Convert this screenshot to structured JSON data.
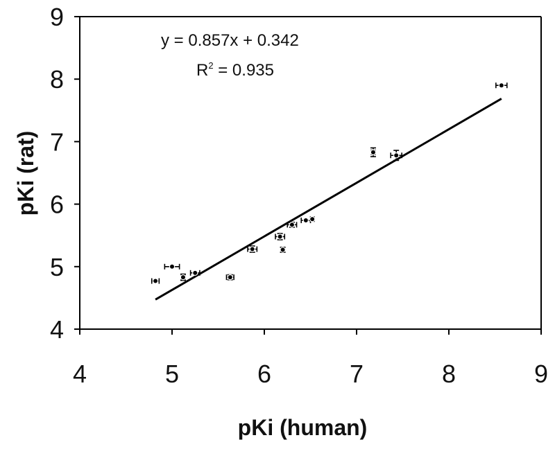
{
  "chart_data": {
    "type": "scatter",
    "xlabel": "pKi (human)",
    "ylabel": "pKi (rat)",
    "xlim": [
      4,
      9
    ],
    "ylim": [
      4,
      9
    ],
    "x_ticks": [
      "4",
      "5",
      "6",
      "7",
      "8",
      "9"
    ],
    "y_ticks": [
      "4",
      "5",
      "6",
      "7",
      "8",
      "9"
    ],
    "grid": false,
    "annotations": {
      "equation": "y = 0.857x + 0.342",
      "r2_prefix": "R",
      "r2_sup": "2",
      "r2_suffix": " = 0.935"
    },
    "fit": {
      "slope": 0.857,
      "intercept": 0.342,
      "x_range": [
        4.82,
        8.57
      ]
    },
    "points": [
      {
        "x": 4.82,
        "y": 4.77,
        "xerr": 0.04,
        "yerr": 0.0
      },
      {
        "x": 5.0,
        "y": 5.0,
        "xerr": 0.08,
        "yerr": 0.0
      },
      {
        "x": 5.12,
        "y": 4.83,
        "xerr": 0.02,
        "yerr": 0.05
      },
      {
        "x": 5.25,
        "y": 4.9,
        "xerr": 0.05,
        "yerr": 0.0
      },
      {
        "x": 5.63,
        "y": 4.83,
        "xerr": 0.04,
        "yerr": 0.04
      },
      {
        "x": 5.87,
        "y": 5.28,
        "xerr": 0.05,
        "yerr": 0.05
      },
      {
        "x": 6.17,
        "y": 5.48,
        "xerr": 0.05,
        "yerr": 0.05
      },
      {
        "x": 6.2,
        "y": 5.27,
        "xerr": 0.02,
        "yerr": 0.04
      },
      {
        "x": 6.3,
        "y": 5.67,
        "xerr": 0.05,
        "yerr": 0.04
      },
      {
        "x": 6.45,
        "y": 5.74,
        "xerr": 0.05,
        "yerr": 0.0
      },
      {
        "x": 6.52,
        "y": 5.76,
        "xerr": 0.02,
        "yerr": 0.0
      },
      {
        "x": 7.18,
        "y": 6.83,
        "xerr": 0.02,
        "yerr": 0.07
      },
      {
        "x": 7.43,
        "y": 6.78,
        "xerr": 0.06,
        "yerr": 0.08
      },
      {
        "x": 8.57,
        "y": 7.9,
        "xerr": 0.06,
        "yerr": 0.0
      }
    ]
  }
}
